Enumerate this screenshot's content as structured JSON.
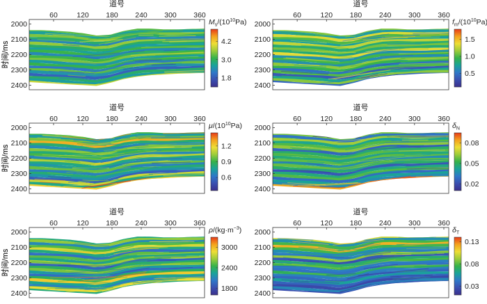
{
  "chart_data": [
    {
      "type": "heatmap",
      "panel": "Ms",
      "title": "道号",
      "xlabel": "道号",
      "ylabel": "时间/ms",
      "x_ticks": [
        "60",
        "120",
        "180",
        "240",
        "300",
        "360"
      ],
      "y_ticks": [
        "2000",
        "2100",
        "2200",
        "2300",
        "2400"
      ],
      "xlim": [
        10,
        370
      ],
      "ylim": [
        1970,
        2430
      ],
      "top_horizon": [
        2040,
        2040,
        2045,
        2050,
        2060,
        2075,
        2070,
        2045,
        2030,
        2030,
        2035,
        2035,
        2032,
        2030
      ],
      "bottom_horizon": [
        2380,
        2385,
        2390,
        2395,
        2400,
        2405,
        2385,
        2360,
        2345,
        2335,
        2330,
        2325,
        2322,
        2320
      ],
      "colorbar": {
        "label": "Ms/(10^10Pa)",
        "ticks": [
          "4.2",
          "3.0",
          "1.8"
        ],
        "min": 1.2,
        "max": 5.0
      }
    },
    {
      "type": "heatmap",
      "panel": "fm",
      "title": "道号",
      "xlabel": "道号",
      "ylabel": "时间/ms",
      "x_ticks": [
        "60",
        "120",
        "180",
        "240",
        "300",
        "360"
      ],
      "y_ticks": [
        "2000",
        "2100",
        "2200",
        "2300",
        "2400"
      ],
      "xlim": [
        10,
        370
      ],
      "ylim": [
        1970,
        2430
      ],
      "top_horizon": [
        2040,
        2040,
        2045,
        2050,
        2060,
        2075,
        2070,
        2045,
        2030,
        2030,
        2035,
        2035,
        2032,
        2030
      ],
      "bottom_horizon": [
        2380,
        2385,
        2390,
        2395,
        2400,
        2405,
        2385,
        2360,
        2345,
        2335,
        2330,
        2325,
        2322,
        2320
      ],
      "colorbar": {
        "label": "fm/(10^10Pa)",
        "ticks": [
          "1.5",
          "1.0",
          "0.5"
        ],
        "min": 0.1,
        "max": 1.8
      }
    },
    {
      "type": "heatmap",
      "panel": "mu",
      "title": "道号",
      "xlabel": "道号",
      "ylabel": "时间/ms",
      "x_ticks": [
        "60",
        "120",
        "180",
        "240",
        "300",
        "360"
      ],
      "y_ticks": [
        "2000",
        "2100",
        "2200",
        "2300",
        "2400"
      ],
      "xlim": [
        10,
        370
      ],
      "ylim": [
        1970,
        2430
      ],
      "top_horizon": [
        2040,
        2040,
        2045,
        2050,
        2060,
        2075,
        2070,
        2045,
        2030,
        2030,
        2035,
        2035,
        2032,
        2030
      ],
      "bottom_horizon": [
        2380,
        2385,
        2390,
        2395,
        2400,
        2405,
        2385,
        2360,
        2345,
        2335,
        2330,
        2325,
        2322,
        2320
      ],
      "colorbar": {
        "label": "μ/(10^10Pa)",
        "ticks": [
          "1.2",
          "0.9",
          "0.6"
        ],
        "min": 0.35,
        "max": 1.45
      }
    },
    {
      "type": "heatmap",
      "panel": "deltaN",
      "title": "道号",
      "xlabel": "道号",
      "ylabel": "时间/ms",
      "x_ticks": [
        "60",
        "120",
        "180",
        "240",
        "300",
        "360"
      ],
      "y_ticks": [
        "2000",
        "2100",
        "2200",
        "2300",
        "2400"
      ],
      "xlim": [
        10,
        370
      ],
      "ylim": [
        1970,
        2430
      ],
      "top_horizon": [
        2040,
        2040,
        2045,
        2050,
        2060,
        2075,
        2070,
        2045,
        2030,
        2030,
        2035,
        2035,
        2032,
        2030
      ],
      "bottom_horizon": [
        2380,
        2385,
        2390,
        2395,
        2400,
        2405,
        2385,
        2360,
        2345,
        2335,
        2330,
        2325,
        2322,
        2320
      ],
      "colorbar": {
        "label": "δN",
        "ticks": [
          "0.08",
          "0.05",
          "0.02"
        ],
        "min": 0.01,
        "max": 0.095
      }
    },
    {
      "type": "heatmap",
      "panel": "rho",
      "title": "道号",
      "xlabel": "道号",
      "ylabel": "时间/ms",
      "x_ticks": [
        "60",
        "120",
        "180",
        "240",
        "300",
        "360"
      ],
      "y_ticks": [
        "2000",
        "2100",
        "2200",
        "2300",
        "2400"
      ],
      "xlim": [
        10,
        370
      ],
      "ylim": [
        1970,
        2430
      ],
      "top_horizon": [
        2040,
        2040,
        2045,
        2050,
        2060,
        2075,
        2070,
        2045,
        2030,
        2030,
        2035,
        2035,
        2032,
        2030
      ],
      "bottom_horizon": [
        2380,
        2385,
        2390,
        2395,
        2400,
        2405,
        2385,
        2360,
        2345,
        2335,
        2330,
        2325,
        2322,
        2320
      ],
      "colorbar": {
        "label": "ρ/(kg·m⁻³)",
        "ticks": [
          "3000",
          "2400",
          "1800"
        ],
        "min": 1600,
        "max": 3300
      }
    },
    {
      "type": "heatmap",
      "panel": "deltaT",
      "title": "道号",
      "xlabel": "道号",
      "ylabel": "时间/ms",
      "x_ticks": [
        "60",
        "120",
        "180",
        "240",
        "300",
        "360"
      ],
      "y_ticks": [
        "2000",
        "2100",
        "2200",
        "2300",
        "2400"
      ],
      "xlim": [
        10,
        370
      ],
      "ylim": [
        1970,
        2430
      ],
      "top_horizon": [
        2040,
        2040,
        2045,
        2050,
        2060,
        2075,
        2070,
        2045,
        2030,
        2030,
        2035,
        2035,
        2032,
        2030
      ],
      "bottom_horizon": [
        2380,
        2385,
        2390,
        2395,
        2400,
        2405,
        2385,
        2360,
        2345,
        2335,
        2330,
        2325,
        2322,
        2320
      ],
      "colorbar": {
        "label": "δT",
        "ticks": [
          "0.13",
          "0.08",
          "0.03"
        ],
        "min": 0.01,
        "max": 0.14
      }
    }
  ],
  "colorbar_labels": {
    "Ms": {
      "sym": "M",
      "sub": "s",
      "rest": "/(10",
      "sup": "10",
      "tail": "Pa)"
    },
    "fm": {
      "sym": "f",
      "sub": "m",
      "rest": "/(10",
      "sup": "10",
      "tail": "Pa)"
    },
    "mu": {
      "sym": "μ",
      "sub": "",
      "rest": "/(10",
      "sup": "10",
      "tail": "Pa)"
    },
    "deltaN": {
      "sym": "δ",
      "sub": "N",
      "rest": "",
      "sup": "",
      "tail": ""
    },
    "rho": {
      "sym": "ρ",
      "sub": "",
      "rest": "/(kg·m",
      "sup": "−3",
      "tail": ")"
    },
    "deltaT": {
      "sym": "δ",
      "sub": "T",
      "rest": "",
      "sup": "",
      "tail": ""
    }
  },
  "colors": {
    "colormap": [
      "#3b2f8c",
      "#3a4fb0",
      "#2f78c8",
      "#1aa39a",
      "#35b24a",
      "#9ccc3a",
      "#eede36",
      "#f4a21e",
      "#e83b18"
    ]
  }
}
